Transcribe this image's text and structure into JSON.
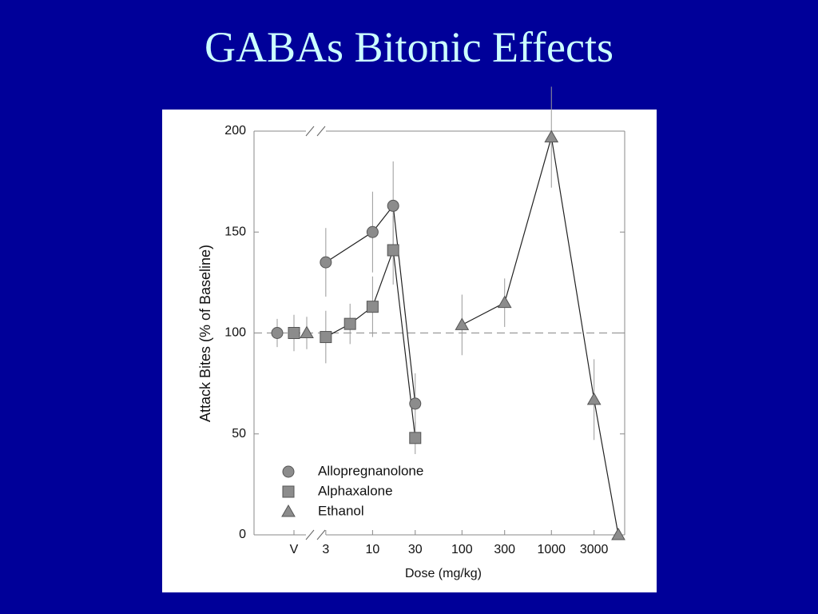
{
  "title": "GABAs Bitonic Effects",
  "chart_data": {
    "type": "line",
    "x_scale": "log",
    "xlabel": "Dose (mg/kg)",
    "ylabel": "Attack Bites (% of Baseline)",
    "xlim": [
      2.4,
      6600
    ],
    "ylim": [
      0,
      200
    ],
    "xticks": [
      3,
      10,
      30,
      100,
      300,
      1000,
      3000
    ],
    "yticks": [
      0,
      50,
      100,
      150,
      200
    ],
    "vehicle_label": "V",
    "reference_line": 100,
    "series": [
      {
        "name": "Allopregnanolone",
        "marker": "circle",
        "color": "#8c8c8c",
        "vehicle_value": 100,
        "vehicle_error": 7,
        "x": [
          3,
          10,
          17,
          30
        ],
        "values": [
          135,
          150,
          163,
          65
        ],
        "errors": [
          17,
          20,
          22,
          15
        ]
      },
      {
        "name": "Alphaxalone",
        "marker": "square",
        "color": "#8c8c8c",
        "vehicle_value": 100,
        "vehicle_error": 9,
        "x": [
          3,
          5.6,
          10,
          17,
          30
        ],
        "values": [
          98,
          104.5,
          113,
          141,
          48
        ],
        "errors": [
          13,
          10,
          15,
          17,
          8
        ]
      },
      {
        "name": "Ethanol",
        "marker": "triangle",
        "color": "#8c8c8c",
        "vehicle_value": 100,
        "vehicle_error": 8,
        "x": [
          100,
          300,
          1000,
          3000,
          5600
        ],
        "values": [
          104,
          115,
          197,
          67,
          0
        ],
        "errors": [
          15,
          12,
          25,
          20,
          0
        ]
      }
    ]
  }
}
